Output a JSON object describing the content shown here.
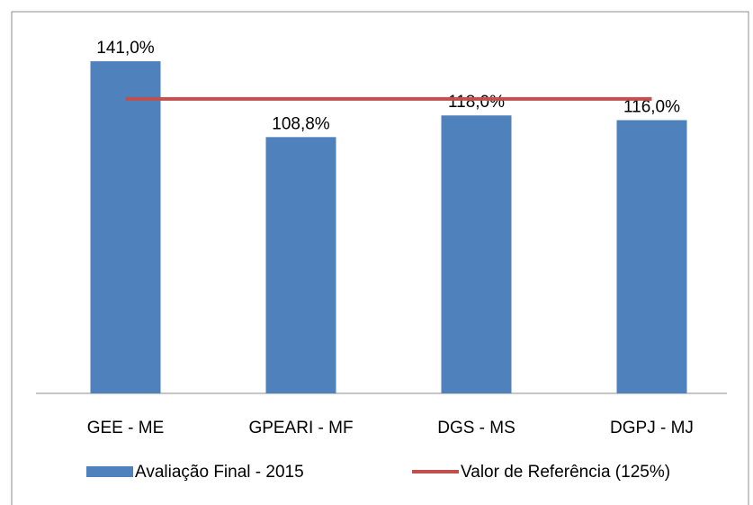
{
  "chart_data": {
    "type": "bar",
    "categories": [
      "GEE - ME",
      "GPEARI - MF",
      "DGS - MS",
      "DGPJ - MJ"
    ],
    "series": [
      {
        "name": "Avaliação Final - 2015",
        "type": "bar",
        "color": "#4f81bd",
        "values": [
          141.0,
          108.8,
          118.0,
          116.0
        ],
        "value_labels": [
          "141,0%",
          "108,8%",
          "118,0%",
          "116,0%"
        ]
      },
      {
        "name": "Valor de Referência (125%)",
        "type": "line",
        "color": "#c0504d",
        "values": [
          125,
          125,
          125,
          125
        ]
      }
    ],
    "ylim": [
      0,
      150
    ]
  }
}
